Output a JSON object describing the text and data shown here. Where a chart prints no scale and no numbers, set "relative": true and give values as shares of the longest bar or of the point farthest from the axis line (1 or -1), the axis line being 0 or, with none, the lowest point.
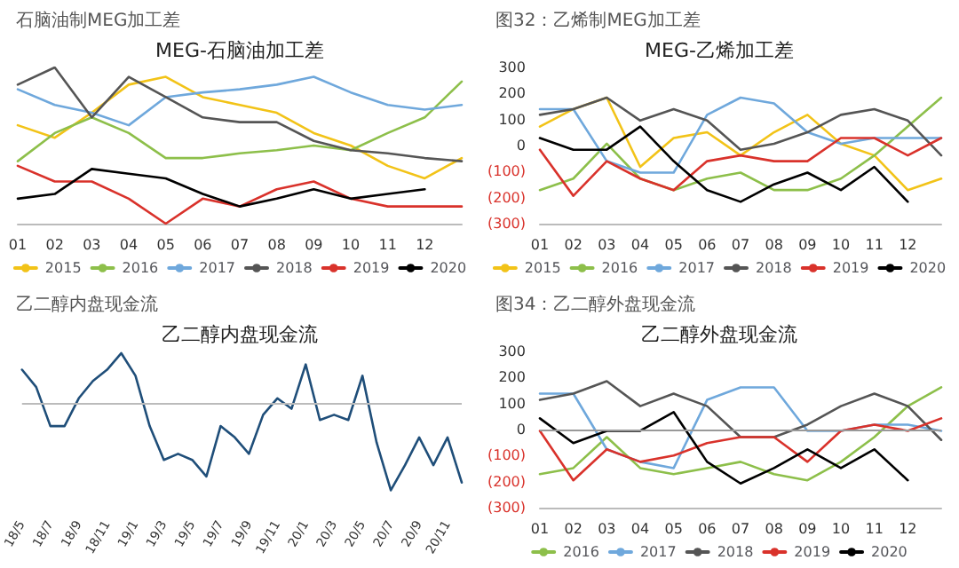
{
  "chart_data": [
    {
      "type": "line",
      "subtitle": "石脑油制MEG加工差",
      "title": "MEG-石脑油加工差",
      "relative": true,
      "x": [
        1,
        2,
        3,
        4,
        5,
        6,
        7,
        8,
        9,
        10,
        11,
        12,
        13
      ],
      "xlim": [
        1,
        13
      ],
      "xticks": [
        {
          "value": 1,
          "label": "01"
        },
        {
          "value": 2,
          "label": "02"
        },
        {
          "value": 3,
          "label": "03"
        },
        {
          "value": 4,
          "label": "04"
        },
        {
          "value": 5,
          "label": "05"
        },
        {
          "value": 6,
          "label": "06"
        },
        {
          "value": 7,
          "label": "07"
        },
        {
          "value": 8,
          "label": "08"
        },
        {
          "value": 9,
          "label": "09"
        },
        {
          "value": 10,
          "label": "10"
        },
        {
          "value": 11,
          "label": "11"
        },
        {
          "value": 12,
          "label": "12"
        }
      ],
      "legend": "bottom",
      "grid": false,
      "marker": "none",
      "line_style": "solid",
      "series": [
        {
          "name": "2015",
          "color": "#f2c318",
          "values": [
            0.63,
            0.55,
            0.71,
            0.89,
            0.94,
            0.81,
            0.76,
            0.71,
            0.58,
            0.5,
            0.37,
            0.29,
            0.42
          ]
        },
        {
          "name": "2016",
          "color": "#8dbf4a",
          "values": [
            0.4,
            0.58,
            0.68,
            0.58,
            0.42,
            0.42,
            0.45,
            0.47,
            0.5,
            0.47,
            0.58,
            0.68,
            0.91
          ]
        },
        {
          "name": "2017",
          "color": "#6fa8dc",
          "values": [
            0.86,
            0.76,
            0.71,
            0.63,
            0.81,
            0.84,
            0.86,
            0.89,
            0.94,
            0.84,
            0.76,
            0.73,
            0.76
          ]
        },
        {
          "name": "2018",
          "color": "#555555",
          "values": [
            0.89,
            1,
            0.68,
            0.94,
            0.81,
            0.68,
            0.65,
            0.65,
            0.53,
            0.47,
            0.45,
            0.42,
            0.4
          ]
        },
        {
          "name": "2019",
          "color": "#d9322b",
          "values": [
            0.37,
            0.27,
            0.27,
            0.16,
            0,
            0.16,
            0.11,
            0.22,
            0.27,
            0.16,
            0.11,
            0.11,
            0.11
          ]
        },
        {
          "name": "2020",
          "color": "#000000",
          "values": [
            0.16,
            0.19,
            0.35,
            0.32,
            0.29,
            0.19,
            0.11,
            0.16,
            0.22,
            0.16,
            0.19,
            0.22,
            null
          ]
        }
      ]
    },
    {
      "type": "line",
      "subtitle": "图32：乙烯制MEG加工差",
      "title": "MEG-乙烯加工差",
      "x": [
        1,
        2,
        3,
        4,
        5,
        6,
        7,
        8,
        9,
        10,
        11,
        12,
        13
      ],
      "xlim": [
        1,
        13
      ],
      "xticks": [
        {
          "value": 1,
          "label": "01"
        },
        {
          "value": 2,
          "label": "02"
        },
        {
          "value": 3,
          "label": "03"
        },
        {
          "value": 4,
          "label": "04"
        },
        {
          "value": 5,
          "label": "05"
        },
        {
          "value": 6,
          "label": "06"
        },
        {
          "value": 7,
          "label": "07"
        },
        {
          "value": 8,
          "label": "08"
        },
        {
          "value": 9,
          "label": "09"
        },
        {
          "value": 10,
          "label": "10"
        },
        {
          "value": 11,
          "label": "11"
        },
        {
          "value": 12,
          "label": "12"
        }
      ],
      "ylim": [
        -300,
        300
      ],
      "yticks": [
        {
          "value": -300,
          "label": "(300)"
        },
        {
          "value": -200,
          "label": "(200)"
        },
        {
          "value": -100,
          "label": "(100)"
        },
        0,
        100,
        200,
        300
      ],
      "legend": "bottom",
      "grid": false,
      "marker": "none",
      "line_style": "solid",
      "series": [
        {
          "name": "2015",
          "color": "#f2c318",
          "values": [
            73,
            140,
            184,
            -82,
            29,
            51,
            -38,
            51,
            118,
            7,
            -38,
            -171,
            -127
          ]
        },
        {
          "name": "2016",
          "color": "#8dbf4a",
          "values": [
            -171,
            -127,
            7,
            -127,
            -171,
            -127,
            -104,
            -171,
            -171,
            -127,
            -38,
            73,
            184
          ]
        },
        {
          "name": "2017",
          "color": "#6fa8dc",
          "values": [
            140,
            140,
            -60,
            -104,
            -104,
            118,
            184,
            162,
            51,
            7,
            29,
            29,
            29
          ]
        },
        {
          "name": "2018",
          "color": "#555555",
          "values": [
            118,
            140,
            184,
            96,
            140,
            96,
            -16,
            7,
            51,
            118,
            140,
            96,
            -38
          ]
        },
        {
          "name": "2019",
          "color": "#d9322b",
          "values": [
            -16,
            -193,
            -60,
            -127,
            -171,
            -60,
            -38,
            -60,
            -60,
            29,
            29,
            -38,
            29
          ]
        },
        {
          "name": "2020",
          "color": "#000000",
          "values": [
            29,
            -16,
            -16,
            73,
            -60,
            -171,
            -216,
            -149,
            -104,
            -171,
            -82,
            -216,
            null
          ]
        }
      ]
    },
    {
      "type": "line",
      "subtitle": "乙二醇内盘现金流",
      "title": "乙二醇内盘现金流",
      "relative": true,
      "categories": [
        "18/5",
        null,
        "18/7",
        null,
        "18/9",
        null,
        "18/11",
        null,
        "19/1",
        null,
        "19/3",
        null,
        "19/5",
        null,
        "19/7",
        null,
        "19/9",
        null,
        "19/11",
        null,
        "20/1",
        null,
        "20/3",
        null,
        "20/5",
        null,
        "20/7",
        null,
        "20/9",
        null,
        "20/11",
        null
      ],
      "legend": false,
      "grid": false,
      "marker": "none",
      "line_style": "solid",
      "ref_lines": [
        {
          "axis": "y",
          "value": 0,
          "color": "#bbbbbb"
        }
      ],
      "series": [
        {
          "color": "#1f4e79",
          "values": [
            0.39,
            0.19,
            -0.26,
            -0.26,
            0.06,
            0.26,
            0.39,
            0.58,
            0.32,
            -0.26,
            -0.65,
            -0.58,
            -0.65,
            -0.84,
            -0.26,
            -0.39,
            -0.58,
            -0.13,
            0.06,
            -0.06,
            0.45,
            -0.19,
            -0.13,
            -0.19,
            0.32,
            -0.45,
            -1,
            -0.71,
            -0.39,
            -0.71,
            -0.39,
            -0.91
          ]
        }
      ]
    },
    {
      "type": "line",
      "subtitle": "图34：乙二醇外盘现金流",
      "title": "乙二醇外盘现金流",
      "x": [
        1,
        2,
        3,
        4,
        5,
        6,
        7,
        8,
        9,
        10,
        11,
        12,
        13
      ],
      "xlim": [
        1,
        13
      ],
      "xticks": [
        {
          "value": 1,
          "label": "01"
        },
        {
          "value": 2,
          "label": "02"
        },
        {
          "value": 3,
          "label": "03"
        },
        {
          "value": 4,
          "label": "04"
        },
        {
          "value": 5,
          "label": "05"
        },
        {
          "value": 6,
          "label": "06"
        },
        {
          "value": 7,
          "label": "07"
        },
        {
          "value": 8,
          "label": "08"
        },
        {
          "value": 9,
          "label": "09"
        },
        {
          "value": 10,
          "label": "10"
        },
        {
          "value": 11,
          "label": "11"
        },
        {
          "value": 12,
          "label": "12"
        }
      ],
      "ylim": [
        -300,
        300
      ],
      "yticks": [
        {
          "value": -300,
          "label": "(300)"
        },
        {
          "value": -200,
          "label": "(200)"
        },
        {
          "value": -100,
          "label": "(100)"
        },
        0,
        100,
        200,
        300
      ],
      "legend": "bottom",
      "grid": false,
      "marker": "none",
      "line_style": "solid",
      "ref_lines": [
        {
          "axis": "y",
          "value": 0,
          "color": "#999999"
        }
      ],
      "series": [
        {
          "name": "2016",
          "color": "#8dbf4a",
          "values": [
            -171,
            -148,
            -29,
            -148,
            -171,
            -148,
            -124,
            -171,
            -195,
            -124,
            -29,
            90,
            162
          ]
        },
        {
          "name": "2017",
          "color": "#6fa8dc",
          "values": [
            138,
            138,
            -76,
            -124,
            -148,
            114,
            162,
            162,
            -5,
            -5,
            19,
            19,
            -5
          ]
        },
        {
          "name": "2018",
          "color": "#555555",
          "values": [
            114,
            138,
            186,
            90,
            138,
            90,
            -29,
            -29,
            19,
            90,
            138,
            90,
            -40
          ]
        },
        {
          "name": "2019",
          "color": "#d9322b",
          "values": [
            -5,
            -195,
            -76,
            -124,
            -100,
            -52,
            -29,
            -29,
            -124,
            -5,
            19,
            -5,
            43
          ]
        },
        {
          "name": "2020",
          "color": "#000000",
          "values": [
            43,
            -52,
            -5,
            -5,
            67,
            -124,
            -207,
            -148,
            -76,
            -148,
            -76,
            -195,
            null
          ]
        }
      ]
    }
  ]
}
